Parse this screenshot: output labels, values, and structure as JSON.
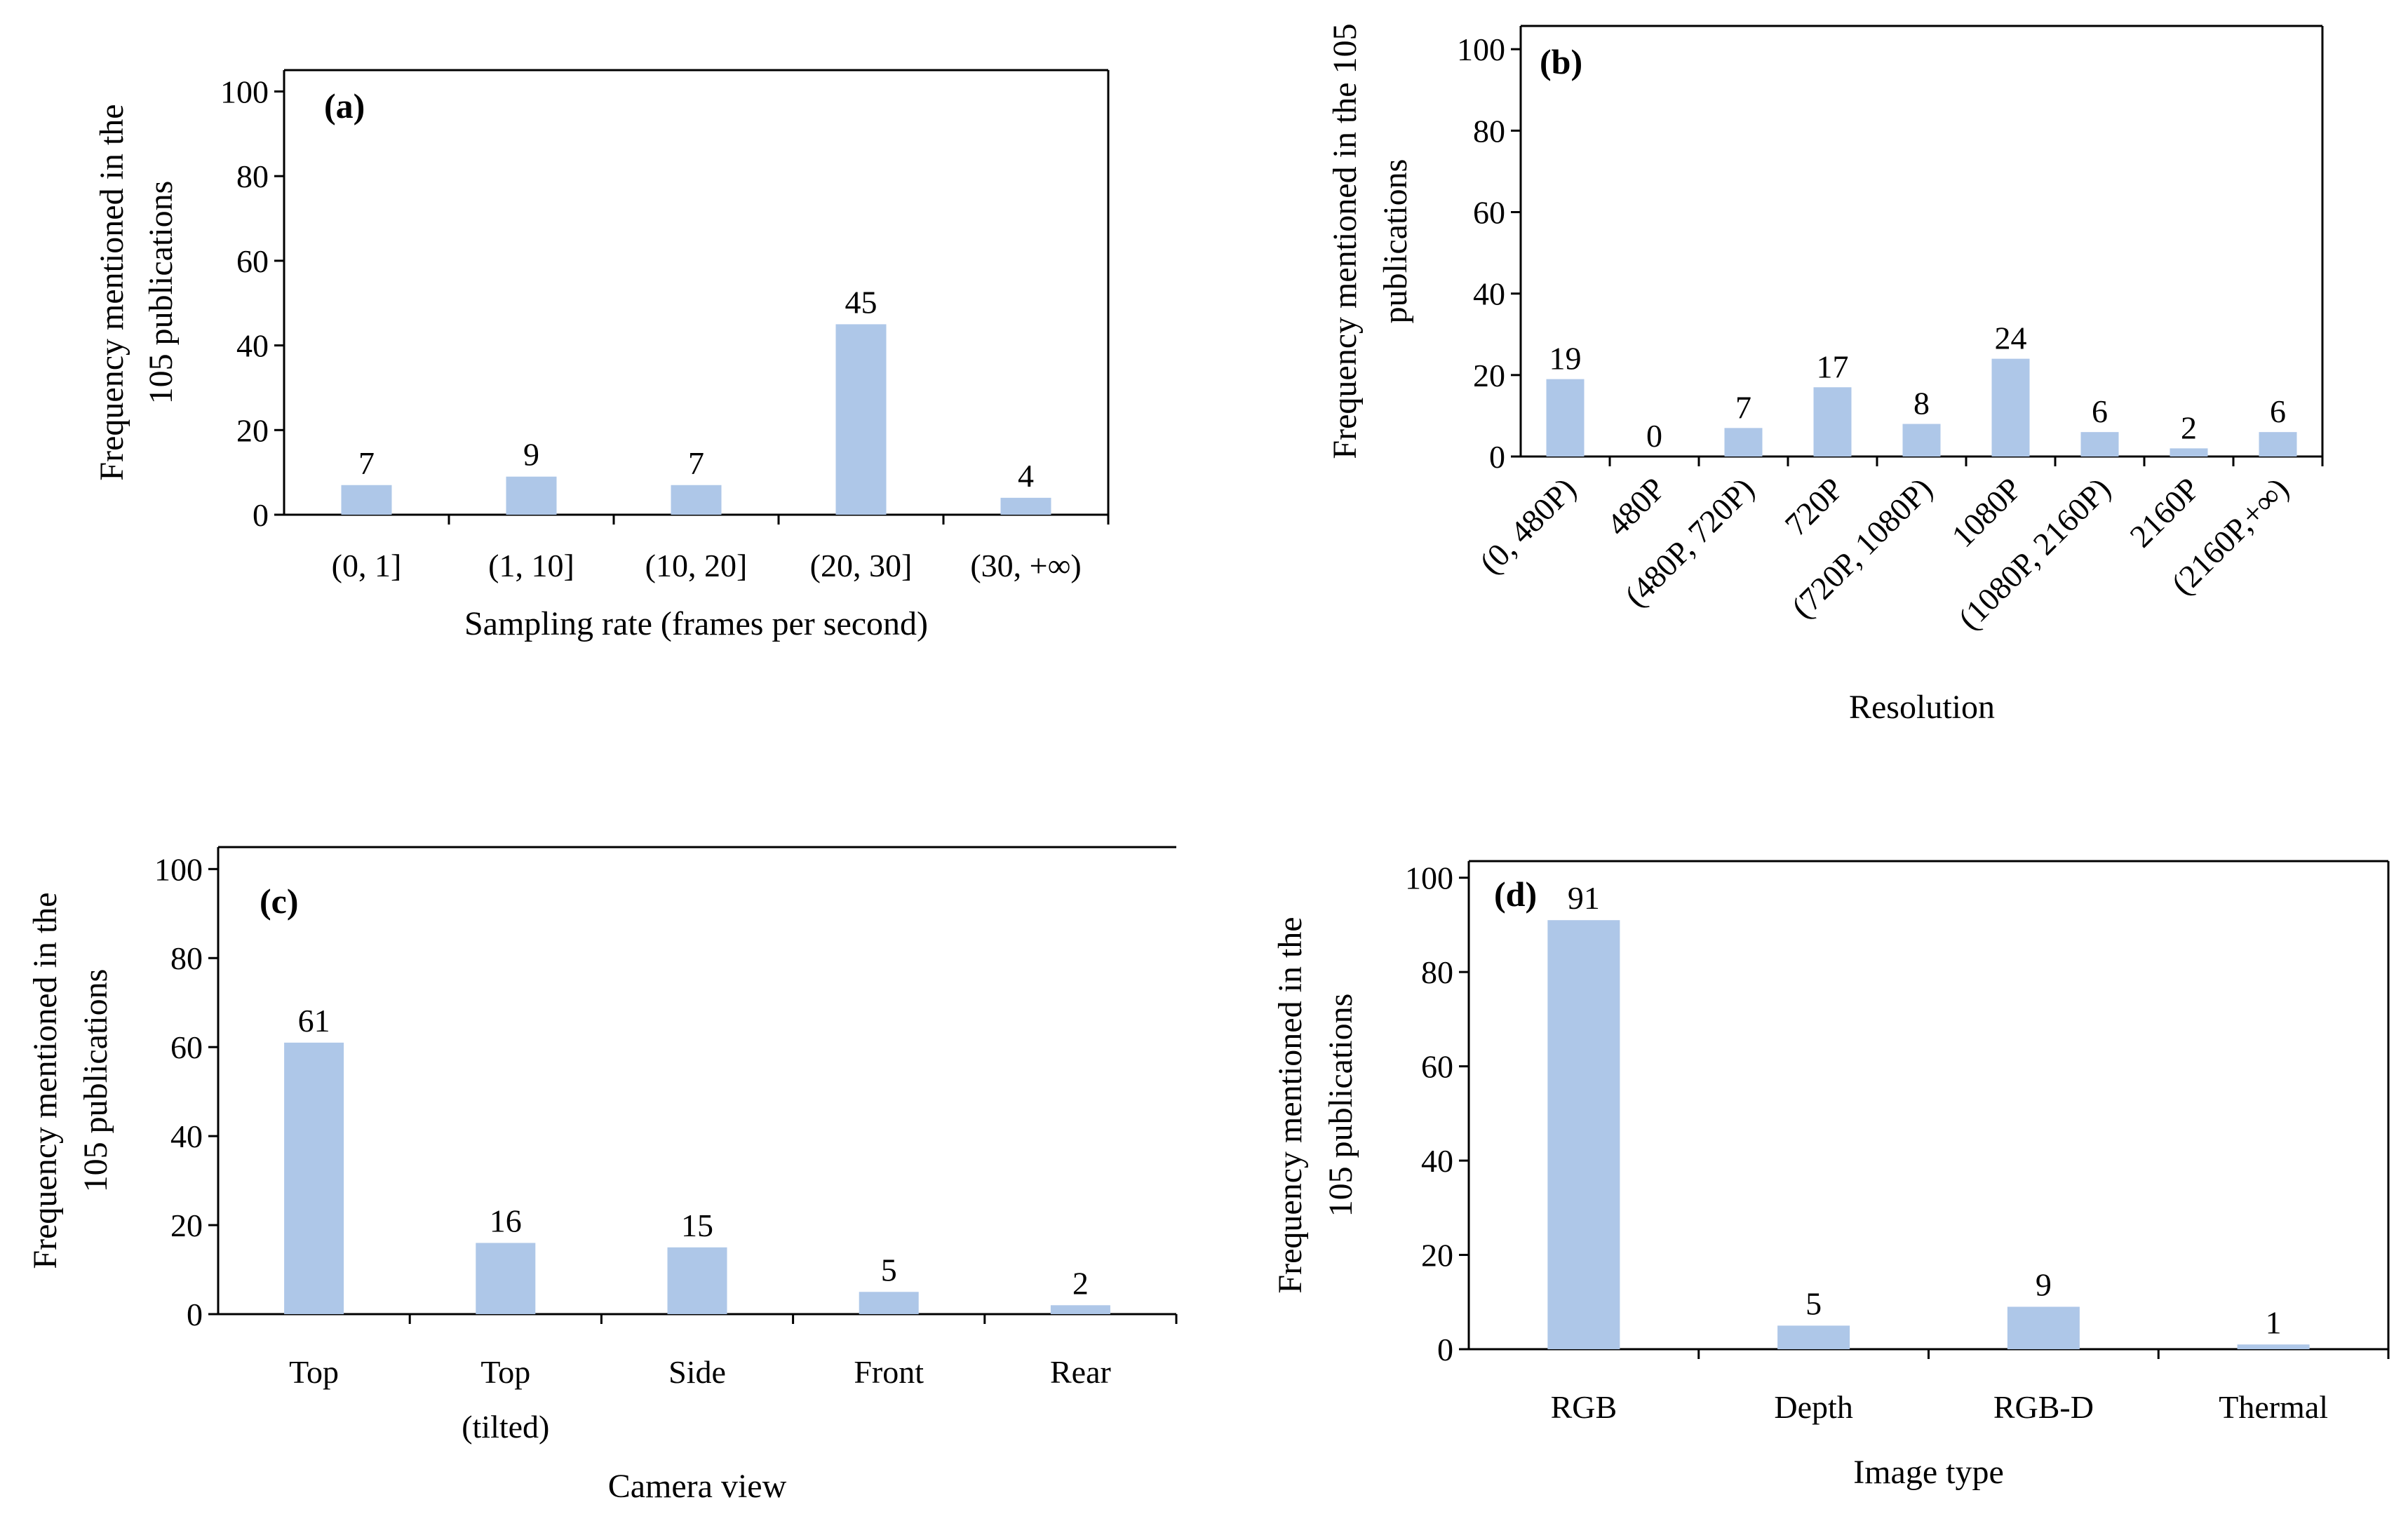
{
  "figure": {
    "bar_color": "#aec7e8",
    "axis_color": "#000000"
  },
  "chart_data": [
    {
      "id": "a",
      "type": "bar",
      "panel_label": "(a)",
      "categories": [
        "(0, 1]",
        "(1, 10]",
        "(10, 20]",
        "(20, 30]",
        "(30, +∞)"
      ],
      "values": [
        7,
        9,
        7,
        45,
        4
      ],
      "xlabel": "Sampling rate (frames per second)",
      "ylabel": [
        "Frequency mentioned in the",
        "105 publications"
      ],
      "ylim": [
        0,
        100
      ],
      "yticks": [
        0,
        20,
        40,
        60,
        80,
        100
      ],
      "grid": false
    },
    {
      "id": "b",
      "type": "bar",
      "panel_label": "(b)",
      "categories": [
        "(0, 480P)",
        "480P",
        "(480P, 720P)",
        "720P",
        "(720P, 1080P)",
        "1080P",
        "(1080P, 2160P)",
        "2160P",
        "(2160P,+∞)"
      ],
      "values": [
        19,
        0,
        7,
        17,
        8,
        24,
        6,
        2,
        6
      ],
      "xlabel": "Resolution",
      "ylabel": [
        "Frequency mentioned in the 105",
        "publications"
      ],
      "ylim": [
        0,
        100
      ],
      "yticks": [
        0,
        20,
        40,
        60,
        80,
        100
      ],
      "grid": false
    },
    {
      "id": "c",
      "type": "bar",
      "panel_label": "(c)",
      "categories": [
        [
          "Top"
        ],
        [
          "Top",
          "(tilted)"
        ],
        [
          "Side"
        ],
        [
          "Front"
        ],
        [
          "Rear"
        ]
      ],
      "values": [
        61,
        16,
        15,
        5,
        2
      ],
      "xlabel": "Camera view",
      "ylabel": [
        "Frequency mentioned in the",
        "105 publications"
      ],
      "ylim": [
        0,
        100
      ],
      "yticks": [
        0,
        20,
        40,
        60,
        80,
        100
      ],
      "grid": false
    },
    {
      "id": "d",
      "type": "bar",
      "panel_label": "(d)",
      "categories": [
        "RGB",
        "Depth",
        "RGB-D",
        "Thermal"
      ],
      "values": [
        91,
        5,
        9,
        1
      ],
      "xlabel": "Image type",
      "ylabel": [
        "Frequency mentioned in the",
        "105 publications"
      ],
      "ylim": [
        0,
        100
      ],
      "yticks": [
        0,
        20,
        40,
        60,
        80,
        100
      ],
      "grid": false
    }
  ]
}
